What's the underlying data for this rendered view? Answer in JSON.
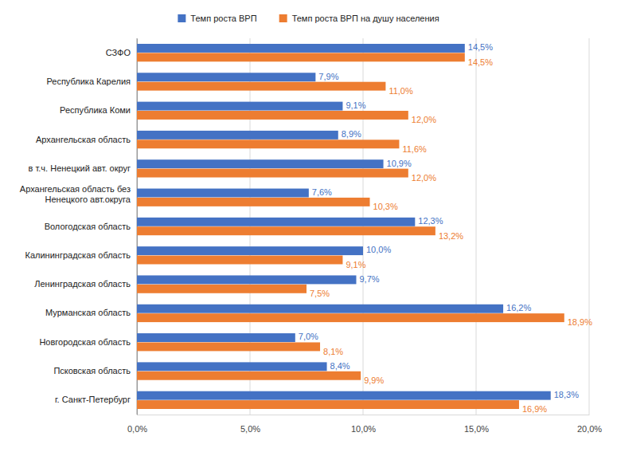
{
  "chart_data": {
    "type": "bar",
    "orientation": "horizontal",
    "grid": true,
    "legend": "top",
    "data_labels": true,
    "categories": [
      "СЗФО",
      "Республика Карелия",
      "Республика Коми",
      "Архангельская область",
      "в т.ч. Ненецкий авт. округ",
      "Архангельская область без Ненецкого авт.округа",
      "Вологодская область",
      "Калининградская область",
      "Ленинградская область",
      "Мурманская область",
      "Новгородская область",
      "Псковская область",
      "г. Санкт-Петербург"
    ],
    "series": [
      {
        "name": "Темп роста ВРП",
        "color": "#4472c4",
        "values": [
          14.5,
          7.9,
          9.1,
          8.9,
          10.9,
          7.6,
          12.3,
          10.0,
          9.7,
          16.2,
          7.0,
          8.4,
          18.3
        ],
        "value_labels": [
          "14,5%",
          "7,9%",
          "9,1%",
          "8,9%",
          "10,9%",
          "7,6%",
          "12,3%",
          "10,0%",
          "9,7%",
          "16,2%",
          "7,0%",
          "8,4%",
          "18,3%"
        ]
      },
      {
        "name": "Темп роста ВРП на душу населения",
        "color": "#ed7d31",
        "values": [
          14.5,
          11.0,
          12.0,
          11.6,
          12.0,
          10.3,
          13.2,
          9.1,
          7.5,
          18.9,
          8.1,
          9.9,
          16.9
        ],
        "value_labels": [
          "14,5%",
          "11,0%",
          "12,0%",
          "11,6%",
          "12,0%",
          "10,3%",
          "13,2%",
          "9,1%",
          "7,5%",
          "18,9%",
          "8,1%",
          "9,9%",
          "16,9%"
        ]
      }
    ],
    "xlim": [
      0,
      20
    ],
    "xticks": [
      {
        "value": 0,
        "label": "0,0%"
      },
      {
        "value": 5,
        "label": "5,0%"
      },
      {
        "value": 10,
        "label": "10,0%"
      },
      {
        "value": 15,
        "label": "15,0%"
      },
      {
        "value": 20,
        "label": "20,0%"
      }
    ]
  }
}
